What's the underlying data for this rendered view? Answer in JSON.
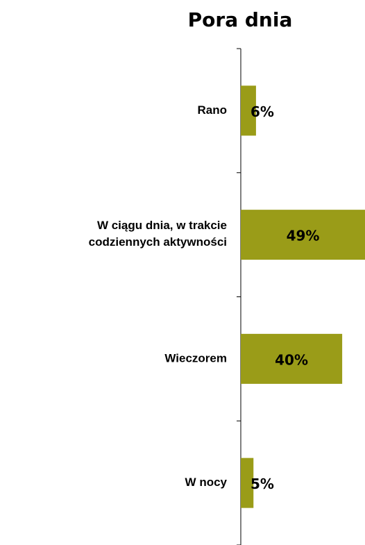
{
  "chart_data": {
    "type": "bar",
    "orientation": "horizontal",
    "title": "Pora dnia",
    "categories": [
      "Rano",
      "W ciągu dnia, w trakcie\ncodziennych aktywności",
      "Wieczorem",
      "W  nocy"
    ],
    "values": [
      6,
      49,
      40,
      5
    ],
    "value_labels": [
      "6%",
      "49%",
      "40%",
      "5%"
    ],
    "color": "#9a9c18",
    "xlim": [
      0,
      49
    ]
  }
}
